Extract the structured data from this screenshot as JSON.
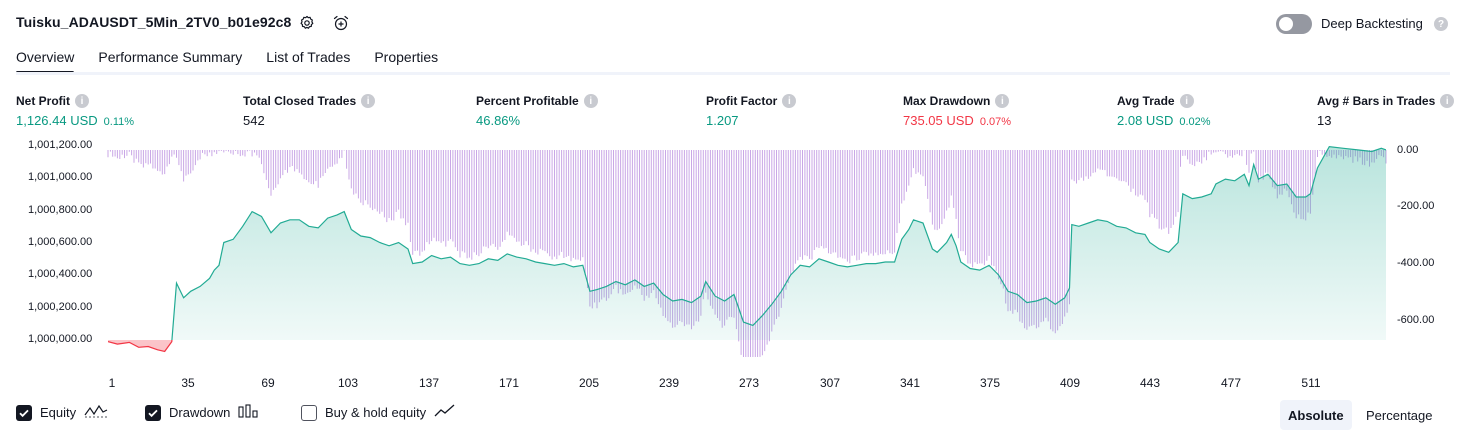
{
  "header": {
    "title": "Tuisku_ADAUSDT_5Min_2TV0_b01e92c8",
    "settings_icon": "gear-icon",
    "alert_icon": "alarm-clock-plus-icon",
    "deep_backtesting_label": "Deep Backtesting",
    "deep_backtesting_on": false
  },
  "tabs": [
    {
      "label": "Overview",
      "active": true
    },
    {
      "label": "Performance Summary",
      "active": false
    },
    {
      "label": "List of Trades",
      "active": false
    },
    {
      "label": "Properties",
      "active": false
    }
  ],
  "stats": {
    "net_profit": {
      "label": "Net Profit",
      "value": "1,126.44 USD",
      "pct": "0.11%"
    },
    "total_closed_trades": {
      "label": "Total Closed Trades",
      "value": "542"
    },
    "percent_profitable": {
      "label": "Percent Profitable",
      "value": "46.86%"
    },
    "profit_factor": {
      "label": "Profit Factor",
      "value": "1.207"
    },
    "max_drawdown": {
      "label": "Max Drawdown",
      "value": "735.05 USD",
      "pct": "0.07%"
    },
    "avg_trade": {
      "label": "Avg Trade",
      "value": "2.08 USD",
      "pct": "0.02%"
    },
    "avg_bars": {
      "label": "Avg # Bars in Trades",
      "value": "13"
    }
  },
  "chart_data": {
    "type": "area",
    "x_ticks": [
      "1",
      "35",
      "69",
      "103",
      "137",
      "171",
      "205",
      "239",
      "273",
      "307",
      "341",
      "375",
      "409",
      "443",
      "477",
      "511"
    ],
    "y_left_ticks": [
      "1,001,200.00",
      "1,001,000.00",
      "1,000,800.00",
      "1,000,600.00",
      "1,000,400.00",
      "1,000,200.00",
      "1,000,000.00"
    ],
    "y_right_ticks": [
      "0.00",
      "-200.00",
      "-400.00",
      "-600.00"
    ],
    "y_left_range": [
      1000000,
      1001200
    ],
    "y_right_range": [
      -660,
      0
    ],
    "x_range": [
      1,
      542
    ],
    "colors": {
      "equity_line": "#22ab94",
      "equity_fill": "#22ab94",
      "loss_line": "#f23645",
      "drawdown": "#c9a7e6"
    },
    "equity": [
      [
        1,
        999990
      ],
      [
        5,
        999975
      ],
      [
        10,
        999985
      ],
      [
        14,
        999955
      ],
      [
        18,
        999960
      ],
      [
        22,
        999940
      ],
      [
        25,
        999930
      ],
      [
        28,
        999990
      ],
      [
        30,
        1000350
      ],
      [
        33,
        1000260
      ],
      [
        36,
        1000300
      ],
      [
        40,
        1000330
      ],
      [
        44,
        1000380
      ],
      [
        46,
        1000430
      ],
      [
        48,
        1000460
      ],
      [
        50,
        1000600
      ],
      [
        54,
        1000620
      ],
      [
        58,
        1000700
      ],
      [
        62,
        1000790
      ],
      [
        66,
        1000760
      ],
      [
        70,
        1000660
      ],
      [
        74,
        1000720
      ],
      [
        78,
        1000740
      ],
      [
        82,
        1000740
      ],
      [
        86,
        1000700
      ],
      [
        90,
        1000690
      ],
      [
        94,
        1000750
      ],
      [
        98,
        1000770
      ],
      [
        101,
        1000790
      ],
      [
        104,
        1000680
      ],
      [
        108,
        1000640
      ],
      [
        112,
        1000630
      ],
      [
        116,
        1000600
      ],
      [
        120,
        1000580
      ],
      [
        124,
        1000600
      ],
      [
        128,
        1000560
      ],
      [
        130,
        1000470
      ],
      [
        134,
        1000480
      ],
      [
        138,
        1000520
      ],
      [
        142,
        1000500
      ],
      [
        146,
        1000510
      ],
      [
        150,
        1000470
      ],
      [
        154,
        1000460
      ],
      [
        158,
        1000470
      ],
      [
        162,
        1000500
      ],
      [
        166,
        1000490
      ],
      [
        170,
        1000530
      ],
      [
        174,
        1000510
      ],
      [
        178,
        1000500
      ],
      [
        182,
        1000480
      ],
      [
        186,
        1000470
      ],
      [
        190,
        1000460
      ],
      [
        194,
        1000470
      ],
      [
        198,
        1000450
      ],
      [
        202,
        1000460
      ],
      [
        205,
        1000300
      ],
      [
        208,
        1000310
      ],
      [
        212,
        1000330
      ],
      [
        216,
        1000360
      ],
      [
        220,
        1000340
      ],
      [
        224,
        1000370
      ],
      [
        228,
        1000330
      ],
      [
        232,
        1000350
      ],
      [
        236,
        1000280
      ],
      [
        240,
        1000240
      ],
      [
        244,
        1000250
      ],
      [
        248,
        1000230
      ],
      [
        252,
        1000270
      ],
      [
        254,
        1000360
      ],
      [
        258,
        1000270
      ],
      [
        262,
        1000240
      ],
      [
        266,
        1000280
      ],
      [
        270,
        1000110
      ],
      [
        274,
        1000090
      ],
      [
        278,
        1000150
      ],
      [
        282,
        1000220
      ],
      [
        286,
        1000300
      ],
      [
        290,
        1000400
      ],
      [
        294,
        1000460
      ],
      [
        298,
        1000450
      ],
      [
        302,
        1000500
      ],
      [
        306,
        1000480
      ],
      [
        310,
        1000460
      ],
      [
        314,
        1000450
      ],
      [
        318,
        1000460
      ],
      [
        322,
        1000470
      ],
      [
        326,
        1000470
      ],
      [
        330,
        1000480
      ],
      [
        334,
        1000480
      ],
      [
        337,
        1000620
      ],
      [
        340,
        1000680
      ],
      [
        342,
        1000740
      ],
      [
        346,
        1000720
      ],
      [
        350,
        1000560
      ],
      [
        352,
        1000540
      ],
      [
        356,
        1000600
      ],
      [
        358,
        1000650
      ],
      [
        360,
        1000580
      ],
      [
        362,
        1000480
      ],
      [
        366,
        1000440
      ],
      [
        370,
        1000430
      ],
      [
        374,
        1000460
      ],
      [
        378,
        1000400
      ],
      [
        382,
        1000300
      ],
      [
        386,
        1000280
      ],
      [
        390,
        1000230
      ],
      [
        394,
        1000240
      ],
      [
        398,
        1000260
      ],
      [
        402,
        1000220
      ],
      [
        406,
        1000260
      ],
      [
        408,
        1000320
      ],
      [
        409,
        1000710
      ],
      [
        412,
        1000700
      ],
      [
        416,
        1000720
      ],
      [
        420,
        1000740
      ],
      [
        424,
        1000730
      ],
      [
        428,
        1000700
      ],
      [
        432,
        1000690
      ],
      [
        436,
        1000660
      ],
      [
        440,
        1000650
      ],
      [
        442,
        1000600
      ],
      [
        446,
        1000560
      ],
      [
        450,
        1000540
      ],
      [
        454,
        1000600
      ],
      [
        456,
        1000900
      ],
      [
        460,
        1000870
      ],
      [
        464,
        1000880
      ],
      [
        468,
        1000900
      ],
      [
        470,
        1000960
      ],
      [
        474,
        1000990
      ],
      [
        478,
        1000980
      ],
      [
        482,
        1001020
      ],
      [
        484,
        1000950
      ],
      [
        486,
        1001080
      ],
      [
        488,
        1000990
      ],
      [
        492,
        1001020
      ],
      [
        496,
        1000950
      ],
      [
        500,
        1000960
      ],
      [
        504,
        1000880
      ],
      [
        508,
        1000880
      ],
      [
        510,
        1000900
      ],
      [
        513,
        1001060
      ],
      [
        518,
        1001190
      ],
      [
        524,
        1001180
      ],
      [
        530,
        1001170
      ],
      [
        536,
        1001160
      ],
      [
        540,
        1001180
      ],
      [
        542,
        1001170
      ]
    ]
  },
  "legend": [
    {
      "label": "Equity",
      "checked": true,
      "icon": "equity-line-icon"
    },
    {
      "label": "Drawdown",
      "checked": true,
      "icon": "drawdown-bars-icon"
    },
    {
      "label": "Buy & hold equity",
      "checked": false,
      "icon": "trend-line-icon"
    }
  ],
  "view_modes": [
    {
      "label": "Absolute",
      "active": true
    },
    {
      "label": "Percentage",
      "active": false
    }
  ]
}
